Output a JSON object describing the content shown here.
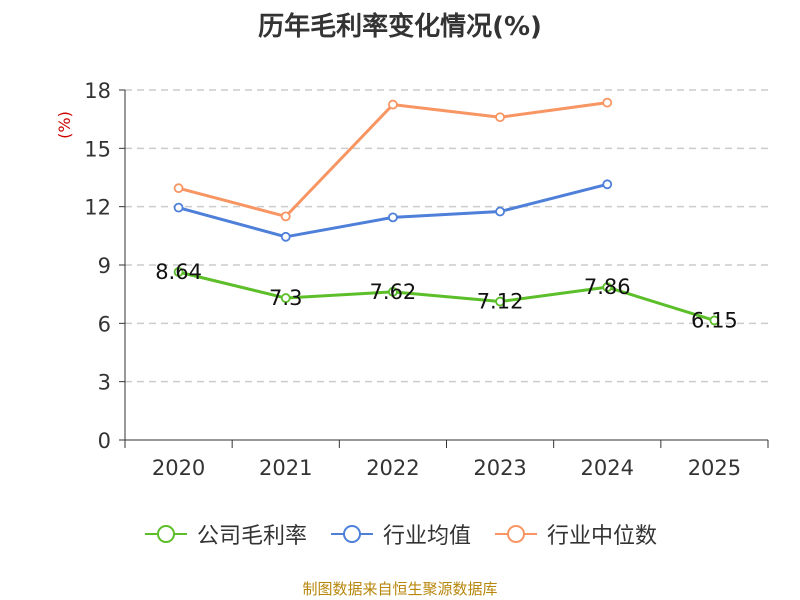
{
  "chart_data": {
    "type": "line",
    "title": "历年毛利率变化情况(%)",
    "ylabel": "(%)",
    "xlabel": "",
    "categories": [
      "2020",
      "2021",
      "2022",
      "2023",
      "2024",
      "2025"
    ],
    "ylim": [
      0,
      18
    ],
    "yticks": [
      0,
      3,
      6,
      9,
      12,
      15,
      18
    ],
    "grid": "horizontal-dashed",
    "legend_position": "bottom",
    "series": [
      {
        "name": "公司毛利率",
        "color": "#5cbf2a",
        "values": [
          8.64,
          7.3,
          7.62,
          7.12,
          7.86,
          6.15
        ],
        "labels": [
          "8.64",
          "7.3",
          "7.62",
          "7.12",
          "7.86",
          "6.15"
        ]
      },
      {
        "name": "行业均值",
        "color": "#4e7fd9",
        "values": [
          11.95,
          10.45,
          11.45,
          11.75,
          13.15,
          null
        ]
      },
      {
        "name": "行业中位数",
        "color": "#f79563",
        "values": [
          12.95,
          11.5,
          17.25,
          16.6,
          17.35,
          null
        ]
      }
    ]
  },
  "source": "制图数据来自恒生聚源数据库"
}
